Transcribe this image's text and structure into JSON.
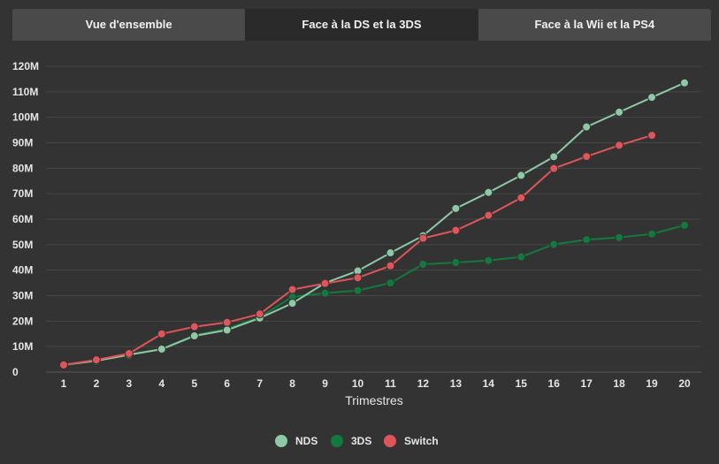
{
  "tabs": [
    {
      "label": "Vue d'ensemble",
      "active": false
    },
    {
      "label": "Face à la DS et la 3DS",
      "active": true
    },
    {
      "label": "Face à la Wii et la PS4",
      "active": false
    }
  ],
  "chart_data": {
    "type": "line",
    "xlabel": "Trimestres",
    "ylabel": "",
    "x": [
      1,
      2,
      3,
      4,
      5,
      6,
      7,
      8,
      9,
      10,
      11,
      12,
      13,
      14,
      15,
      16,
      17,
      18,
      19,
      20
    ],
    "ylim": [
      0,
      120
    ],
    "yticks": [
      {
        "value": 0,
        "label": "0"
      },
      {
        "value": 10,
        "label": "10M"
      },
      {
        "value": 20,
        "label": "20M"
      },
      {
        "value": 30,
        "label": "30M"
      },
      {
        "value": 40,
        "label": "40M"
      },
      {
        "value": 50,
        "label": "50M"
      },
      {
        "value": 60,
        "label": "60M"
      },
      {
        "value": 70,
        "label": "70M"
      },
      {
        "value": 80,
        "label": "80M"
      },
      {
        "value": 90,
        "label": "90M"
      },
      {
        "value": 100,
        "label": "100M"
      },
      {
        "value": 110,
        "label": "110M"
      },
      {
        "value": 120,
        "label": "120M"
      }
    ],
    "grid": true,
    "legend_position": "bottom-center",
    "series": [
      {
        "name": "NDS",
        "color": "#8ec9a6",
        "values": [
          2.8,
          4.4,
          6.8,
          9.0,
          14.2,
          16.5,
          21.2,
          27.0,
          35.0,
          39.7,
          46.8,
          53.5,
          64.2,
          70.5,
          77.2,
          84.5,
          96.2,
          102.0,
          107.8,
          113.5
        ]
      },
      {
        "name": "3DS",
        "color": "#137a3e",
        "values": [
          2.9,
          4.6,
          7.0,
          9.0,
          14.5,
          17.0,
          21.5,
          29.5,
          31.0,
          32.0,
          35.0,
          42.3,
          43.0,
          43.8,
          45.2,
          50.1,
          52.0,
          52.8,
          54.2,
          57.6
        ]
      },
      {
        "name": "Switch",
        "color": "#e0555a",
        "values": [
          2.8,
          4.8,
          7.3,
          15.0,
          17.8,
          19.5,
          22.8,
          32.4,
          34.8,
          37.0,
          41.7,
          52.5,
          55.6,
          61.5,
          68.4,
          79.9,
          84.6,
          89.0,
          92.9,
          null
        ]
      }
    ]
  }
}
